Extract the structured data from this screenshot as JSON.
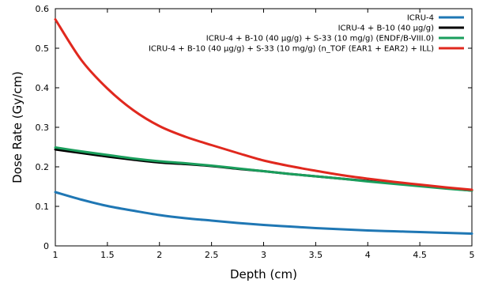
{
  "chart_data": {
    "type": "line",
    "title": "",
    "xlabel": "Depth (cm)",
    "ylabel": "Dose Rate (Gy/cm)",
    "xlim": [
      1,
      5
    ],
    "ylim": [
      0,
      0.6
    ],
    "x_ticks": [
      1,
      1.5,
      2,
      2.5,
      3,
      3.5,
      4,
      4.5,
      5
    ],
    "x_tick_labels": [
      "1",
      "1.5",
      "2",
      "2.5",
      "3",
      "3.5",
      "4",
      "4.5",
      "5"
    ],
    "y_ticks": [
      0,
      0.1,
      0.2,
      0.3,
      0.4,
      0.5,
      0.6
    ],
    "y_tick_labels": [
      "0",
      "0.1",
      "0.2",
      "0.3",
      "0.4",
      "0.5",
      "0.6"
    ],
    "grid": false,
    "legend_position": "top-right",
    "series": [
      {
        "name": "ICRU-4",
        "color": "#1f77b4",
        "x": [
          1,
          1.25,
          1.5,
          1.75,
          2,
          2.25,
          2.5,
          2.75,
          3,
          3.25,
          3.5,
          3.75,
          4,
          4.25,
          4.5,
          4.75,
          5
        ],
        "y": [
          0.136,
          0.117,
          0.101,
          0.089,
          0.078,
          0.07,
          0.064,
          0.058,
          0.053,
          0.049,
          0.045,
          0.042,
          0.039,
          0.037,
          0.035,
          0.033,
          0.031
        ]
      },
      {
        "name": "ICRU-4 + B-10 (40 µg/g)",
        "color": "#000000",
        "x": [
          1,
          1.25,
          1.5,
          1.75,
          2,
          2.25,
          2.5,
          2.75,
          3,
          3.25,
          3.5,
          3.75,
          4,
          4.25,
          4.5,
          4.75,
          5
        ],
        "y": [
          0.244,
          0.235,
          0.226,
          0.218,
          0.211,
          0.207,
          0.202,
          0.195,
          0.189,
          0.182,
          0.176,
          0.17,
          0.164,
          0.158,
          0.152,
          0.146,
          0.14
        ]
      },
      {
        "name": "ICRU-4 + B-10 (40 µg/g) + S-33 (10 mg/g) (ENDF/B-VIII.0)",
        "color": "#1a9e5c",
        "x": [
          1,
          1.25,
          1.5,
          1.75,
          2,
          2.25,
          2.5,
          2.75,
          3,
          3.25,
          3.5,
          3.75,
          4,
          4.25,
          4.5,
          4.75,
          5
        ],
        "y": [
          0.249,
          0.239,
          0.23,
          0.221,
          0.214,
          0.209,
          0.203,
          0.196,
          0.189,
          0.182,
          0.176,
          0.17,
          0.163,
          0.157,
          0.151,
          0.145,
          0.14
        ]
      },
      {
        "name": "ICRU-4 + B-10 (40 µg/g) + S-33 (10 mg/g) (n_TOF (EAR1 + EAR2) + ILL)",
        "color": "#e0281e",
        "x": [
          1,
          1.25,
          1.5,
          1.75,
          2,
          2.25,
          2.5,
          2.75,
          3,
          3.25,
          3.5,
          3.75,
          4,
          4.25,
          4.5,
          4.75,
          5
        ],
        "y": [
          0.573,
          0.47,
          0.398,
          0.343,
          0.303,
          0.276,
          0.255,
          0.235,
          0.216,
          0.202,
          0.19,
          0.179,
          0.17,
          0.162,
          0.155,
          0.148,
          0.142
        ]
      }
    ]
  }
}
